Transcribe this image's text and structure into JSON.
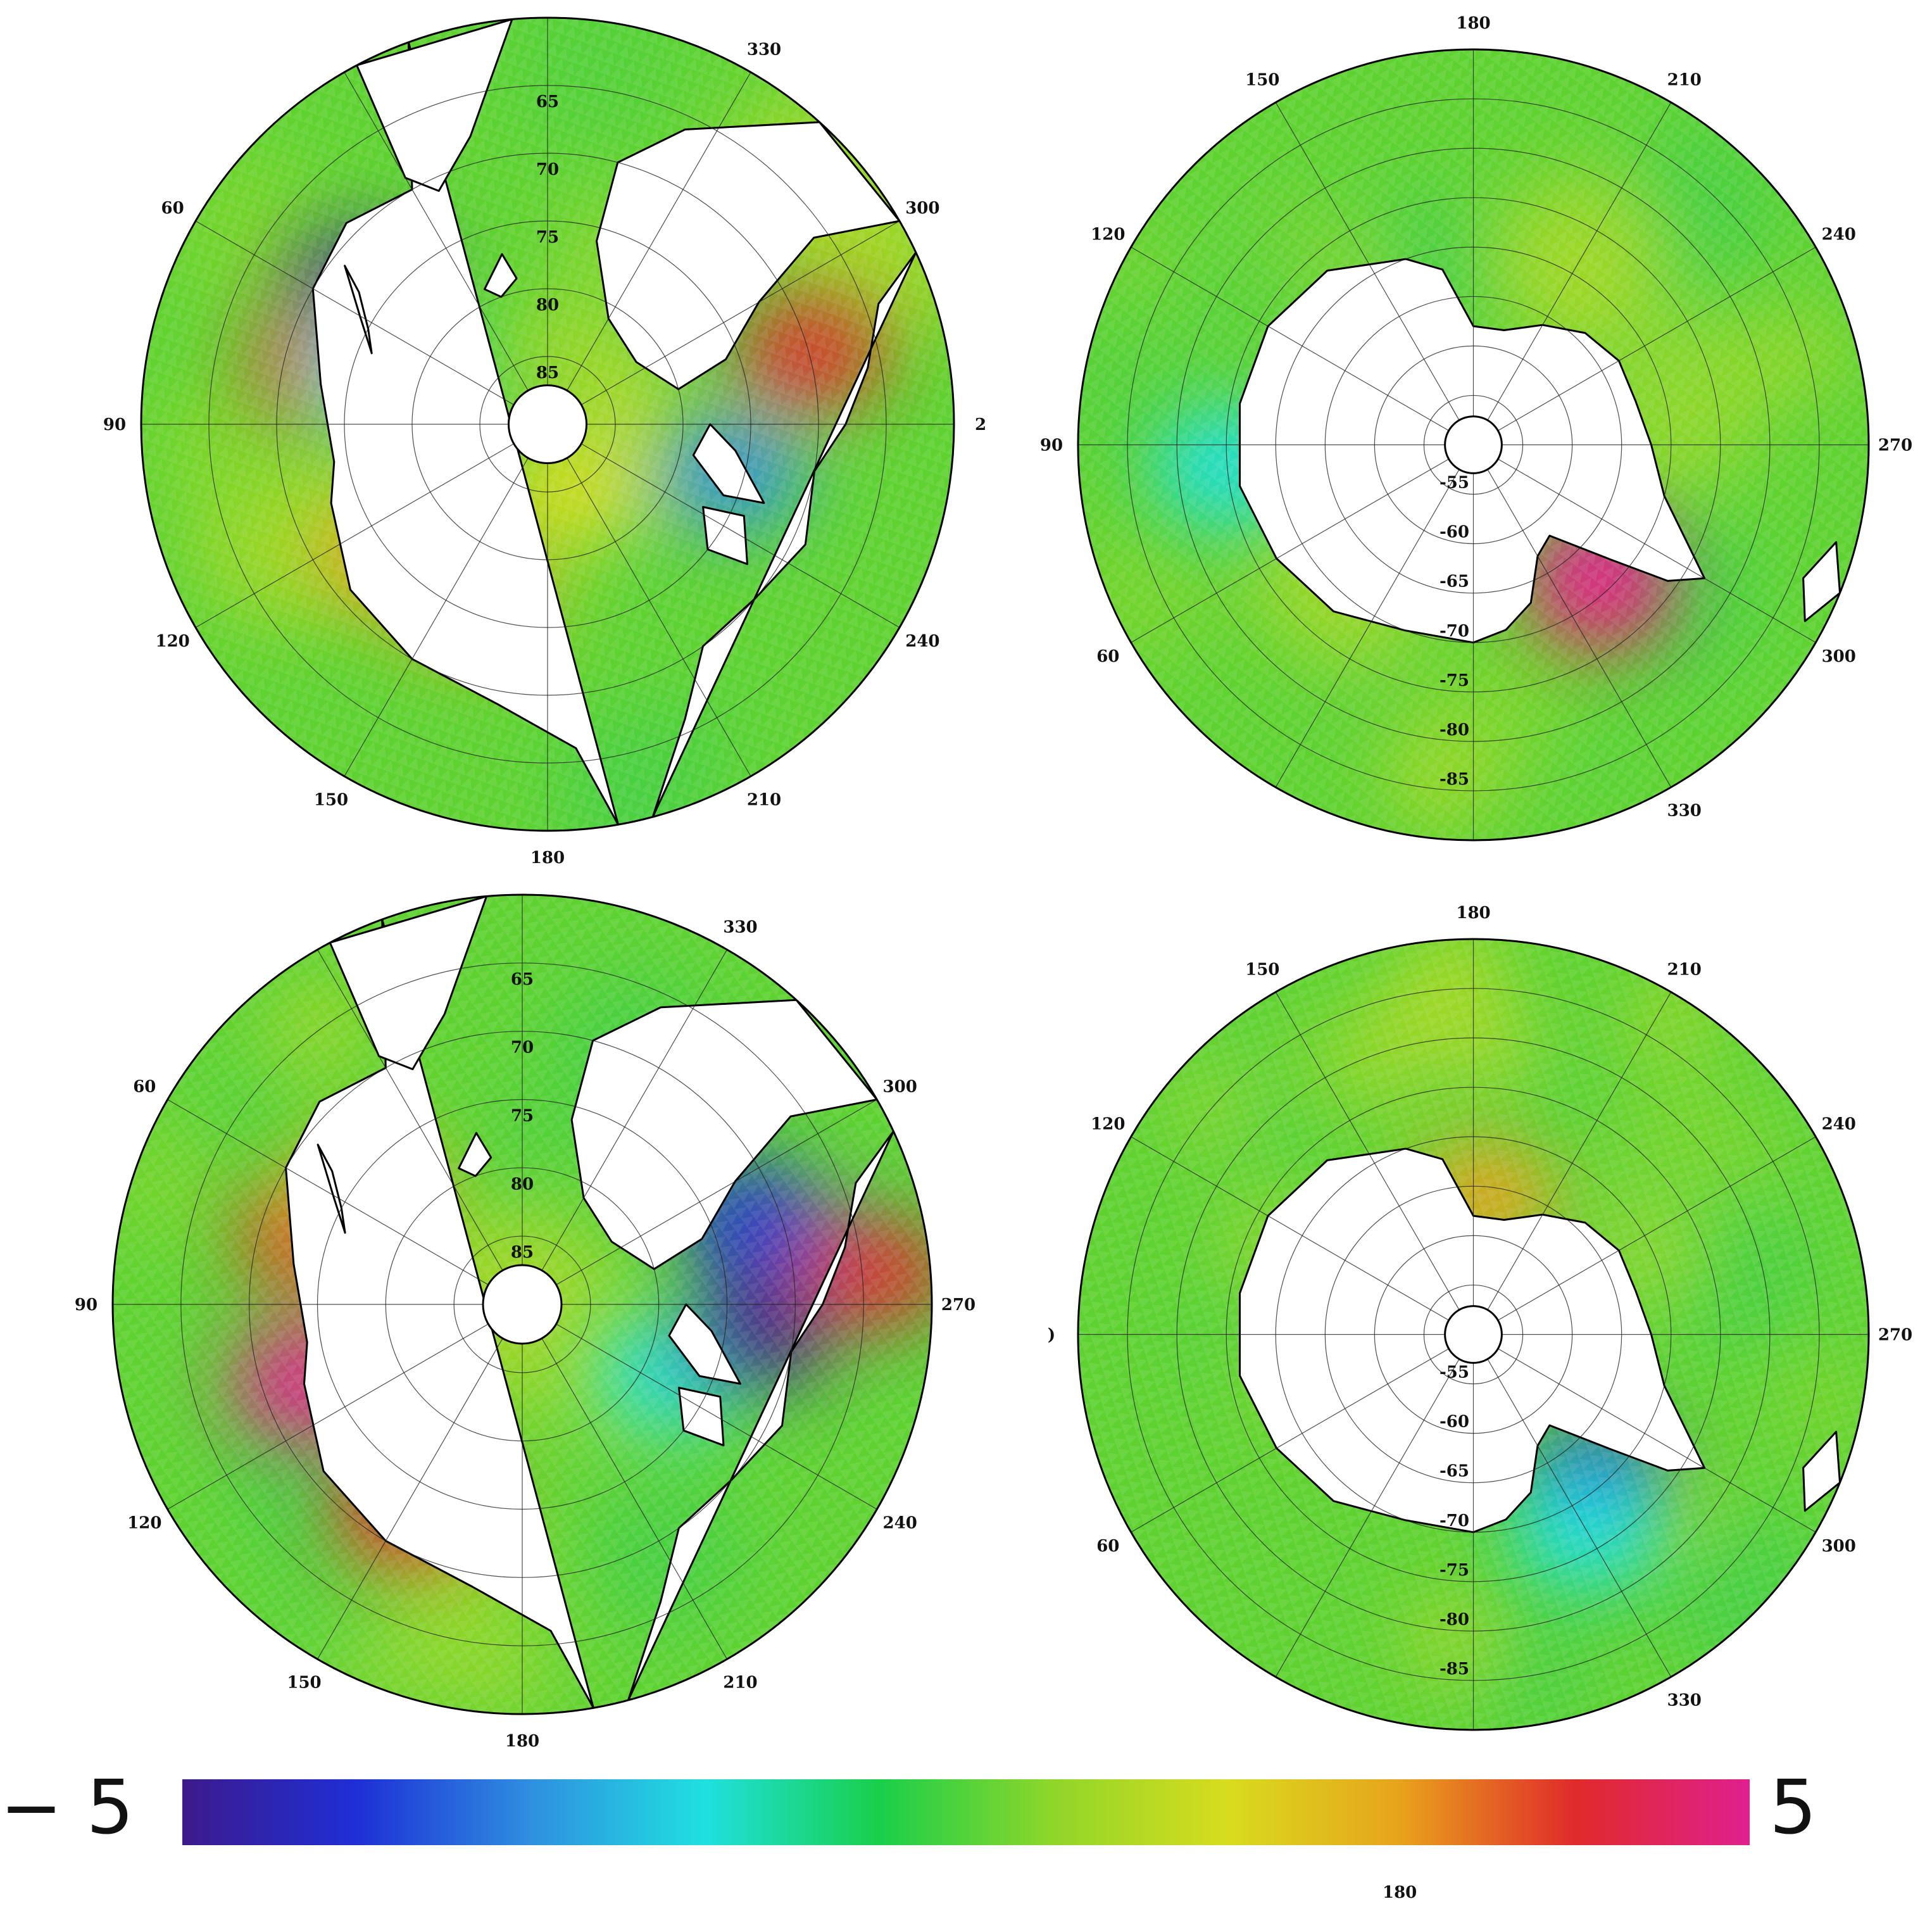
{
  "colors": {
    "colorbar": [
      "#3d1a8c",
      "#1e2fd6",
      "#2f8fe0",
      "#1fe0e0",
      "#19cf4a",
      "#8fd62a",
      "#d8dc1e",
      "#e8a21c",
      "#e02a2a",
      "#e0208f"
    ],
    "ocean_base": "#5fd232",
    "coastline": "#000000",
    "land": "#ffffff"
  },
  "colorbar": {
    "min_label": "− 5",
    "max_label": "5"
  },
  "stray_label": "180",
  "panels": [
    {
      "id": "arctic-top",
      "hemisphere": "north",
      "lon_labels": [
        {
          "deg": 330,
          "text": "330"
        },
        {
          "deg": 300,
          "text": "300"
        },
        {
          "deg": 270,
          "text": "2"
        },
        {
          "deg": 240,
          "text": "240"
        },
        {
          "deg": 210,
          "text": "210"
        },
        {
          "deg": 180,
          "text": "180"
        },
        {
          "deg": 150,
          "text": "150"
        },
        {
          "deg": 120,
          "text": "120"
        },
        {
          "deg": 90,
          "text": "90"
        },
        {
          "deg": 60,
          "text": "60"
        }
      ],
      "lat_labels": [
        "65",
        "70",
        "75",
        "80",
        "85"
      ],
      "anomalies": [
        {
          "name": "barents-kara",
          "lon": 55,
          "lat": 73,
          "color": "#3d1a8c"
        },
        {
          "name": "kara-red",
          "lon": 75,
          "lat": 73,
          "color": "#e02a2a"
        },
        {
          "name": "laptev-cyan",
          "lon": 70,
          "lat": 77,
          "color": "#1fe0e0"
        },
        {
          "name": "east-siberian",
          "lon": 130,
          "lat": 75,
          "color": "#e8a21c"
        },
        {
          "name": "chukchi-orange",
          "lon": 155,
          "lat": 76,
          "color": "#e8a21c"
        },
        {
          "name": "canadian-arch",
          "lon": 255,
          "lat": 76,
          "color": "#2f8fe0"
        },
        {
          "name": "baffin-red",
          "lon": 285,
          "lat": 70,
          "color": "#e02a2a"
        },
        {
          "name": "pole-orange",
          "lon": 200,
          "lat": 85,
          "color": "#d8dc1e"
        }
      ]
    },
    {
      "id": "antarctic-top",
      "hemisphere": "south",
      "lon_labels": [
        {
          "deg": 180,
          "text": "180"
        },
        {
          "deg": 210,
          "text": "210"
        },
        {
          "deg": 240,
          "text": "240"
        },
        {
          "deg": 270,
          "text": "270"
        },
        {
          "deg": 300,
          "text": "300"
        },
        {
          "deg": 330,
          "text": "330"
        },
        {
          "deg": 60,
          "text": "60"
        },
        {
          "deg": 90,
          "text": "90"
        },
        {
          "deg": 120,
          "text": "120"
        },
        {
          "deg": 150,
          "text": "150"
        }
      ],
      "lat_labels": [
        "-85",
        "-80",
        "-75",
        "-70",
        "-65",
        "-60",
        "-55"
      ],
      "anomalies": [
        {
          "name": "weddell-red",
          "lon": 320,
          "lat": -70,
          "color": "#e02a2a"
        },
        {
          "name": "weddell-magenta",
          "lon": 315,
          "lat": -72,
          "color": "#e0208f"
        },
        {
          "name": "east-ant-cyan",
          "lon": 85,
          "lat": -65,
          "color": "#1fe0e0"
        }
      ]
    },
    {
      "id": "arctic-bottom",
      "hemisphere": "north",
      "lon_labels": [
        {
          "deg": 330,
          "text": "330"
        },
        {
          "deg": 300,
          "text": "300"
        },
        {
          "deg": 270,
          "text": "270"
        },
        {
          "deg": 240,
          "text": "240"
        },
        {
          "deg": 210,
          "text": "210"
        },
        {
          "deg": 180,
          "text": "180"
        },
        {
          "deg": 150,
          "text": "150"
        },
        {
          "deg": 120,
          "text": "120"
        },
        {
          "deg": 90,
          "text": "90"
        },
        {
          "deg": 60,
          "text": "60"
        }
      ],
      "lat_labels": [
        "65",
        "70",
        "75",
        "80",
        "85"
      ],
      "anomalies": [
        {
          "name": "kara-red",
          "lon": 72,
          "lat": 74,
          "color": "#e02a2a"
        },
        {
          "name": "barents-orange",
          "lon": 55,
          "lat": 76,
          "color": "#e8a21c"
        },
        {
          "name": "laptev-magenta",
          "lon": 110,
          "lat": 73,
          "color": "#e0208f"
        },
        {
          "name": "east-siberian-red",
          "lon": 150,
          "lat": 73,
          "color": "#e02a2a"
        },
        {
          "name": "baffin-blue",
          "lon": 290,
          "lat": 72,
          "color": "#1e2fd6"
        },
        {
          "name": "canadian-cyan",
          "lon": 245,
          "lat": 78,
          "color": "#1fe0e0"
        },
        {
          "name": "canadian-purple",
          "lon": 262,
          "lat": 73,
          "color": "#3d1a8c"
        },
        {
          "name": "hudson-red",
          "lon": 275,
          "lat": 64,
          "color": "#e02a2a"
        }
      ]
    },
    {
      "id": "antarctic-bottom",
      "hemisphere": "south",
      "lon_labels": [
        {
          "deg": 180,
          "text": "180"
        },
        {
          "deg": 210,
          "text": "210"
        },
        {
          "deg": 240,
          "text": "240"
        },
        {
          "deg": 270,
          "text": "270"
        },
        {
          "deg": 300,
          "text": "300"
        },
        {
          "deg": 330,
          "text": "330"
        },
        {
          "deg": 60,
          "text": "60"
        },
        {
          "deg": 90,
          "text": ")"
        },
        {
          "deg": 120,
          "text": "120"
        },
        {
          "deg": 150,
          "text": "150"
        }
      ],
      "lat_labels": [
        "-85",
        "-80",
        "-75",
        "-70",
        "-65",
        "-60",
        "-55"
      ],
      "anomalies": [
        {
          "name": "weddell-blue",
          "lon": 320,
          "lat": -71,
          "color": "#1e2fd6"
        },
        {
          "name": "weddell-cyan",
          "lon": 330,
          "lat": -67,
          "color": "#1fe0e0"
        },
        {
          "name": "ross-orange",
          "lon": 185,
          "lat": -76,
          "color": "#e8a21c"
        }
      ]
    }
  ]
}
